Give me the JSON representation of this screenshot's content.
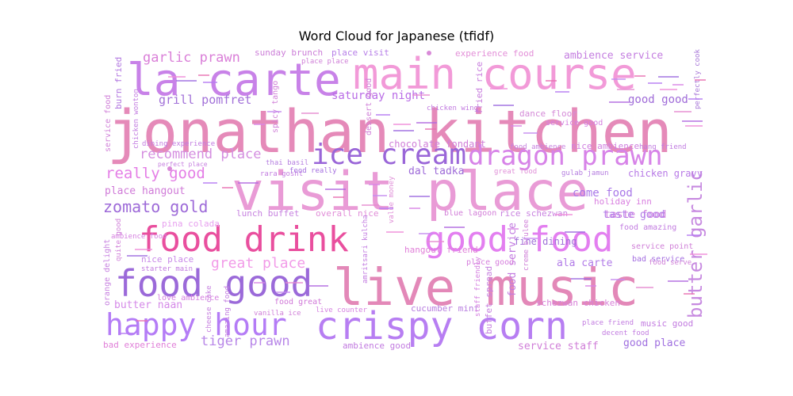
{
  "chart_data": {
    "type": "wordcloud",
    "title": "Word Cloud for Japanese (tfidf)",
    "palette": [
      "#e86fb0",
      "#b57bf2",
      "#f08bd8",
      "#9d6be0",
      "#d985e6",
      "#c58cf0",
      "#e58ad0",
      "#b068e0"
    ],
    "words": [
      {
        "text": "jonathan kitchen",
        "weight": 1.0,
        "color": "#e58ab9"
      },
      {
        "text": "visit place",
        "weight": 0.82,
        "color": "#e99bd6"
      },
      {
        "text": "main course",
        "weight": 0.72,
        "color": "#f29ad8"
      },
      {
        "text": "live music",
        "weight": 0.86,
        "color": "#e388b8"
      },
      {
        "text": "la carte",
        "weight": 0.62,
        "color": "#c882e8"
      },
      {
        "text": "food drink",
        "weight": 0.58,
        "color": "#e94f9e"
      },
      {
        "text": "crispy corn",
        "weight": 0.62,
        "color": "#b77ef2"
      },
      {
        "text": "food good",
        "weight": 0.58,
        "color": "#9b6ad9"
      },
      {
        "text": "good food",
        "weight": 0.56,
        "color": "#e37ff0"
      },
      {
        "text": "happy hour",
        "weight": 0.46,
        "color": "#b47cf6"
      },
      {
        "text": "dragon prawn",
        "weight": 0.36,
        "color": "#d783e8"
      },
      {
        "text": "ice cream",
        "weight": 0.38,
        "color": "#9a66d8"
      },
      {
        "text": "butter garlic",
        "weight": 0.26,
        "color": "#c78ae0"
      },
      {
        "text": "zomato gold",
        "weight": 0.24,
        "color": "#9d6ad8"
      },
      {
        "text": "really good",
        "weight": 0.22,
        "color": "#e47ee6"
      },
      {
        "text": "recommend place",
        "weight": 0.2,
        "color": "#d58fe0"
      },
      {
        "text": "garlic prawn",
        "weight": 0.2,
        "color": "#da7fd8"
      },
      {
        "text": "great place",
        "weight": 0.2,
        "color": "#f29be8"
      },
      {
        "text": "tiger prawn",
        "weight": 0.18,
        "color": "#b887e8"
      },
      {
        "text": "grill pomfret",
        "weight": 0.17,
        "color": "#a170d8"
      },
      {
        "text": "saturday night",
        "weight": 0.16,
        "color": "#b96ce6"
      },
      {
        "text": "good good",
        "weight": 0.15,
        "color": "#9f6bd8"
      },
      {
        "text": "ambience service",
        "weight": 0.14,
        "color": "#c47ee0"
      },
      {
        "text": "place hangout",
        "weight": 0.14,
        "color": "#d07bd8"
      },
      {
        "text": "come food",
        "weight": 0.14,
        "color": "#a978e8"
      },
      {
        "text": "taste food",
        "weight": 0.13,
        "color": "#cc78dd"
      },
      {
        "text": "butter naan",
        "weight": 0.13,
        "color": "#d58ae8"
      },
      {
        "text": "chocolate fondant",
        "weight": 0.12,
        "color": "#d07ed8"
      },
      {
        "text": "dal tadka",
        "weight": 0.12,
        "color": "#9d6ad8"
      },
      {
        "text": "good place",
        "weight": 0.12,
        "color": "#a070e0"
      },
      {
        "text": "service staff",
        "weight": 0.12,
        "color": "#d07ed8"
      },
      {
        "text": "hangout friend",
        "weight": 0.11,
        "color": "#e07fd8"
      },
      {
        "text": "fine dining",
        "weight": 0.11,
        "color": "#9f70d8"
      },
      {
        "text": "nice place",
        "weight": 0.1,
        "color": "#c889e8"
      },
      {
        "text": "lunch buffet",
        "weight": 0.1,
        "color": "#c783e0"
      },
      {
        "text": "overall nice",
        "weight": 0.1,
        "color": "#e18ed8"
      },
      {
        "text": "pina colada",
        "weight": 0.1,
        "color": "#e7a0ef"
      },
      {
        "text": "holiday inn",
        "weight": 0.1,
        "color": "#d980e0"
      },
      {
        "text": "chicken gravy",
        "weight": 0.1,
        "color": "#b779e6"
      },
      {
        "text": "ala carte",
        "weight": 0.1,
        "color": "#b27ce8"
      },
      {
        "text": "nice ambience",
        "weight": 0.09,
        "color": "#d080e0"
      },
      {
        "text": "experience food",
        "weight": 0.09,
        "color": "#e38fd8"
      },
      {
        "text": "sunday brunch",
        "weight": 0.09,
        "color": "#cc7ed8"
      },
      {
        "text": "place visit",
        "weight": 0.09,
        "color": "#b77fe8"
      },
      {
        "text": "dance floor",
        "weight": 0.09,
        "color": "#d58bd8"
      },
      {
        "text": "food service",
        "weight": 0.09,
        "color": "#c27be0"
      },
      {
        "text": "rice schezwan",
        "weight": 0.09,
        "color": "#c982e0"
      },
      {
        "text": "schezwan chicken",
        "weight": 0.09,
        "color": "#d880d8"
      },
      {
        "text": "music good",
        "weight": 0.09,
        "color": "#c27be0"
      },
      {
        "text": "burn fried",
        "weight": 0.09,
        "color": "#b277e0"
      },
      {
        "text": "fried rice",
        "weight": 0.09,
        "color": "#c77cdd"
      },
      {
        "text": "bad experience",
        "weight": 0.09,
        "color": "#e07fd8"
      },
      {
        "text": "ambience good",
        "weight": 0.09,
        "color": "#c27be0"
      },
      {
        "text": "cucumber mint",
        "weight": 0.09,
        "color": "#b87ee0"
      },
      {
        "text": "taste good",
        "weight": 0.09,
        "color": "#b27ce8"
      },
      {
        "text": "food great",
        "weight": 0.08,
        "color": "#d078d8"
      },
      {
        "text": "place good",
        "weight": 0.08,
        "color": "#d67edd"
      },
      {
        "text": "blue lagoon",
        "weight": 0.08,
        "color": "#d27ed8"
      },
      {
        "text": "service good",
        "weight": 0.07,
        "color": "#d580e0"
      },
      {
        "text": "chicken wing",
        "weight": 0.07,
        "color": "#c27be0"
      },
      {
        "text": "dessert good",
        "weight": 0.07,
        "color": "#d080d8"
      },
      {
        "text": "perfectly cook",
        "weight": 0.07,
        "color": "#a878d8"
      },
      {
        "text": "bad service",
        "weight": 0.07,
        "color": "#a46ee0"
      },
      {
        "text": "service point",
        "weight": 0.07,
        "color": "#d080d8"
      },
      {
        "text": "food ambience",
        "weight": 0.07,
        "color": "#c782e0"
      },
      {
        "text": "hang friend",
        "weight": 0.07,
        "color": "#c07be0"
      },
      {
        "text": "gulab jamun",
        "weight": 0.07,
        "color": "#b57ee0"
      },
      {
        "text": "great food",
        "weight": 0.06,
        "color": "#e08fd8"
      },
      {
        "text": "dining experience",
        "weight": 0.07,
        "color": "#c27be0"
      },
      {
        "text": "spicy tango",
        "weight": 0.07,
        "color": "#d080d8"
      },
      {
        "text": "rara gosht",
        "weight": 0.07,
        "color": "#c27be0"
      },
      {
        "text": "food really",
        "weight": 0.07,
        "color": "#a46ee0"
      },
      {
        "text": "thai basil",
        "weight": 0.07,
        "color": "#b57ee0"
      },
      {
        "text": "perfect place",
        "weight": 0.06,
        "color": "#c782e0"
      },
      {
        "text": "food amazing",
        "weight": 0.07,
        "color": "#c27be0"
      },
      {
        "text": "food serve",
        "weight": 0.06,
        "color": "#d080d8"
      },
      {
        "text": "place place",
        "weight": 0.07,
        "color": "#d080d8"
      },
      {
        "text": "value money",
        "weight": 0.07,
        "color": "#e08fd8"
      },
      {
        "text": "amritsari kulcha",
        "weight": 0.07,
        "color": "#c27be0"
      },
      {
        "text": "buffet spread",
        "weight": 0.07,
        "color": "#c782e0"
      },
      {
        "text": "staff friendly",
        "weight": 0.06,
        "color": "#d580e0"
      },
      {
        "text": "creme brulee",
        "weight": 0.06,
        "color": "#d080d8"
      },
      {
        "text": "place friend",
        "weight": 0.06,
        "color": "#c27be0"
      },
      {
        "text": "decent food",
        "weight": 0.06,
        "color": "#c27be0"
      },
      {
        "text": "live counter",
        "weight": 0.06,
        "color": "#d580e0"
      },
      {
        "text": "vanilla ice",
        "weight": 0.06,
        "color": "#d080d8"
      },
      {
        "text": "amazing food",
        "weight": 0.06,
        "color": "#c27be0"
      },
      {
        "text": "cheese cake",
        "weight": 0.06,
        "color": "#c782e0"
      },
      {
        "text": "love ambience",
        "weight": 0.06,
        "color": "#d580e0"
      },
      {
        "text": "starter main",
        "weight": 0.06,
        "color": "#c27be0"
      },
      {
        "text": "orange delight",
        "weight": 0.07,
        "color": "#c782e0"
      },
      {
        "text": "quite good",
        "weight": 0.06,
        "color": "#d080d8"
      },
      {
        "text": "ambience food",
        "weight": 0.06,
        "color": "#d580e0"
      },
      {
        "text": "service food",
        "weight": 0.07,
        "color": "#d080d8"
      },
      {
        "text": "chicken wonton",
        "weight": 0.06,
        "color": "#c27be0"
      }
    ]
  }
}
